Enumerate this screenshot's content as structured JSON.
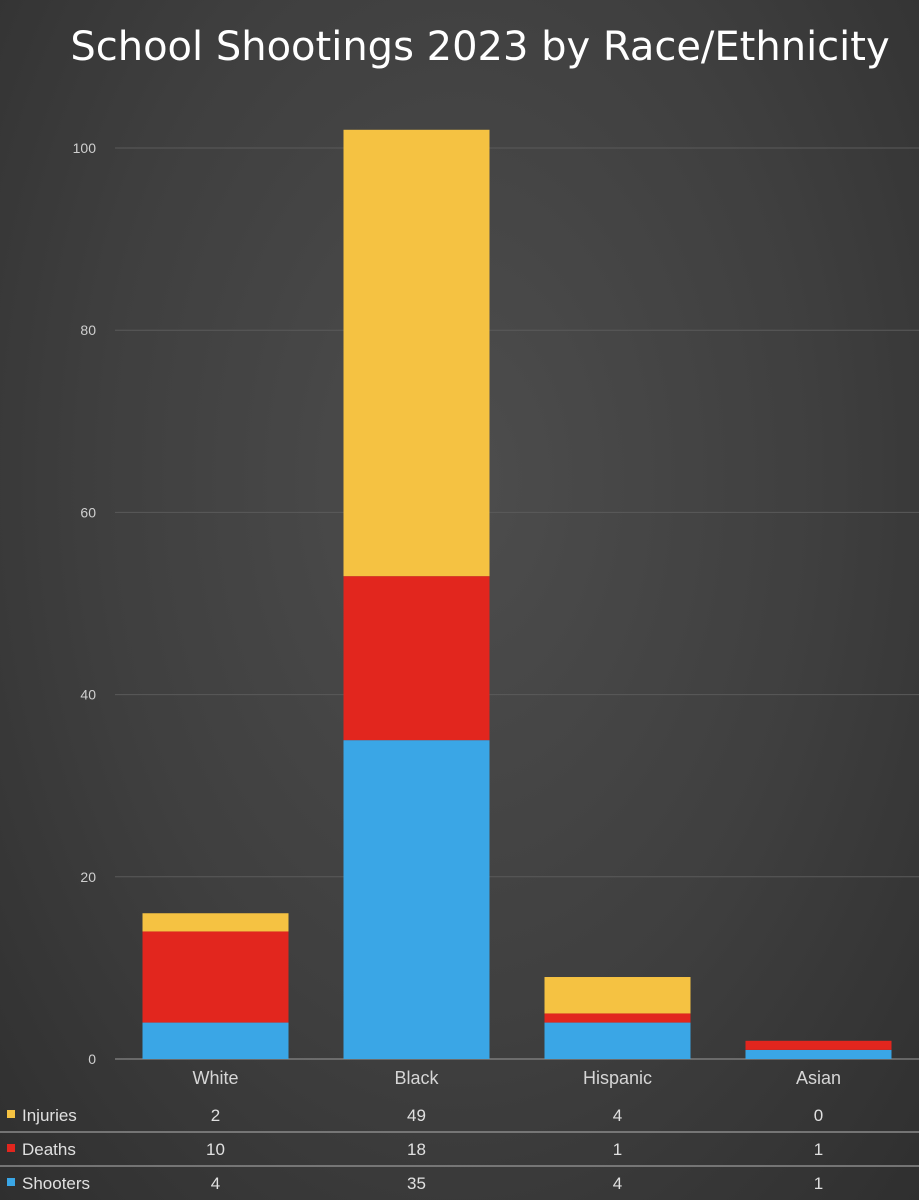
{
  "chart_data": {
    "type": "bar",
    "stacked": true,
    "title": "School Shootings 2023 by Race/Ethnicity",
    "categories": [
      "White",
      "Black",
      "Hispanic",
      "Asian"
    ],
    "series": [
      {
        "name": "Shooters",
        "values": [
          4,
          35,
          4,
          1
        ],
        "color": "#3aa6e6"
      },
      {
        "name": "Deaths",
        "values": [
          10,
          18,
          1,
          1
        ],
        "color": "#e2261e"
      },
      {
        "name": "Injuries",
        "values": [
          2,
          49,
          4,
          0
        ],
        "color": "#f5c242"
      }
    ],
    "table_order": [
      "Injuries",
      "Deaths",
      "Shooters"
    ],
    "ylim": [
      0,
      100
    ],
    "yticks": [
      0,
      20,
      40,
      60,
      80,
      100
    ],
    "grid": true,
    "legend": "data-table-left",
    "xlabel": "",
    "ylabel": ""
  }
}
